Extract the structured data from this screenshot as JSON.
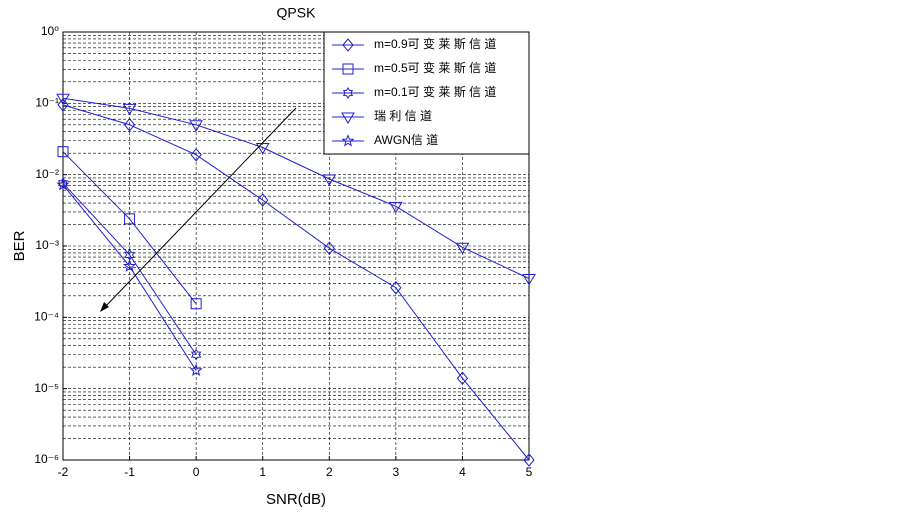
{
  "chart_data": {
    "type": "line",
    "title": "QPSK",
    "x_label": "SNR(dB)",
    "y_label": "BER",
    "x": [
      -2,
      -1,
      0,
      1,
      2,
      3,
      4,
      5
    ],
    "series": [
      {
        "name": "m=0.9可 变 莱 斯 信 道",
        "color": "#2020d0",
        "marker": "diamond",
        "values": [
          0.095,
          0.05,
          0.019,
          0.0044,
          0.00093,
          0.00026,
          1.4e-05,
          1e-06
        ]
      },
      {
        "name": "m=0.5可 变 莱 斯 信 道",
        "color": "#2020d0",
        "marker": "square",
        "values": [
          0.021,
          0.0024,
          0.000155,
          null,
          null,
          null,
          null,
          null
        ]
      },
      {
        "name": "m=0.1可 变 莱 斯 信 道",
        "color": "#2020d0",
        "marker": "hexagram",
        "values": [
          0.0076,
          0.00075,
          3e-05,
          null,
          null,
          null,
          null,
          null
        ]
      },
      {
        "name": "瑞 利 信 道",
        "color": "#2020d0",
        "marker": "triangle-down",
        "values": [
          0.118,
          0.085,
          0.05,
          0.024,
          0.0087,
          0.0036,
          0.00096,
          0.00035
        ]
      },
      {
        "name": "AWGN信 道",
        "color": "#2020d0",
        "marker": "pentagram",
        "values": [
          0.0072,
          0.00052,
          1.8e-05,
          null,
          null,
          null,
          null,
          null
        ]
      }
    ],
    "xlim": [
      -2,
      5
    ],
    "xticks": [
      -2,
      -1,
      0,
      1,
      2,
      3,
      4,
      5
    ],
    "ylim": [
      1e-06,
      1
    ],
    "log_y": true,
    "yticks": [
      {
        "value": 1e-06,
        "label": "10⁻⁶"
      },
      {
        "value": 1e-05,
        "label": "10⁻⁵"
      },
      {
        "value": 0.0001,
        "label": "10⁻⁴"
      },
      {
        "value": 0.001,
        "label": "10⁻³"
      },
      {
        "value": 0.01,
        "label": "10⁻²"
      },
      {
        "value": 0.1,
        "label": "10⁻¹"
      },
      {
        "value": 1,
        "label": "10⁰"
      }
    ],
    "grid": true,
    "legend": "upper right"
  }
}
